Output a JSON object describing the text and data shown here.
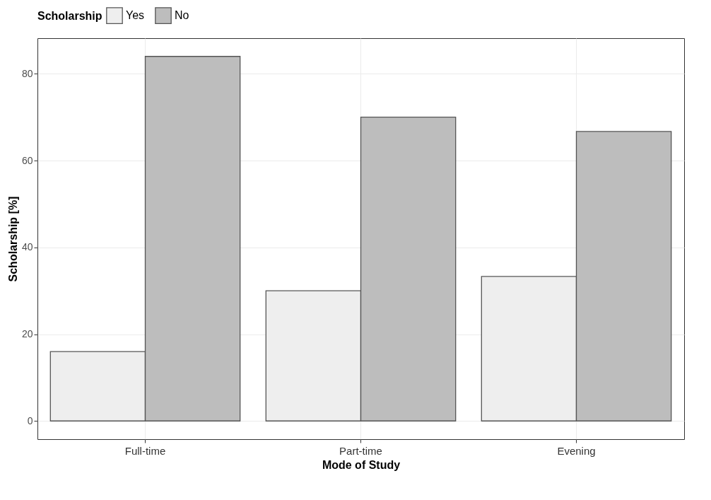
{
  "chart_data": {
    "type": "bar",
    "xlabel": "Mode of Study",
    "ylabel": "Scholarship [%]",
    "legend_title": "Scholarship",
    "legend": "top",
    "categories": [
      "Full-time",
      "Part-time",
      "Evening"
    ],
    "series": [
      {
        "name": "Yes",
        "color": "#eeeeee",
        "values": [
          16,
          30,
          33.3
        ]
      },
      {
        "name": "No",
        "color": "#bdbdbd",
        "values": [
          84,
          70,
          66.7
        ]
      }
    ],
    "ylim": [
      -4.2,
      88.2
    ],
    "yticks": [
      0,
      20,
      40,
      60,
      80
    ],
    "grid": true
  }
}
